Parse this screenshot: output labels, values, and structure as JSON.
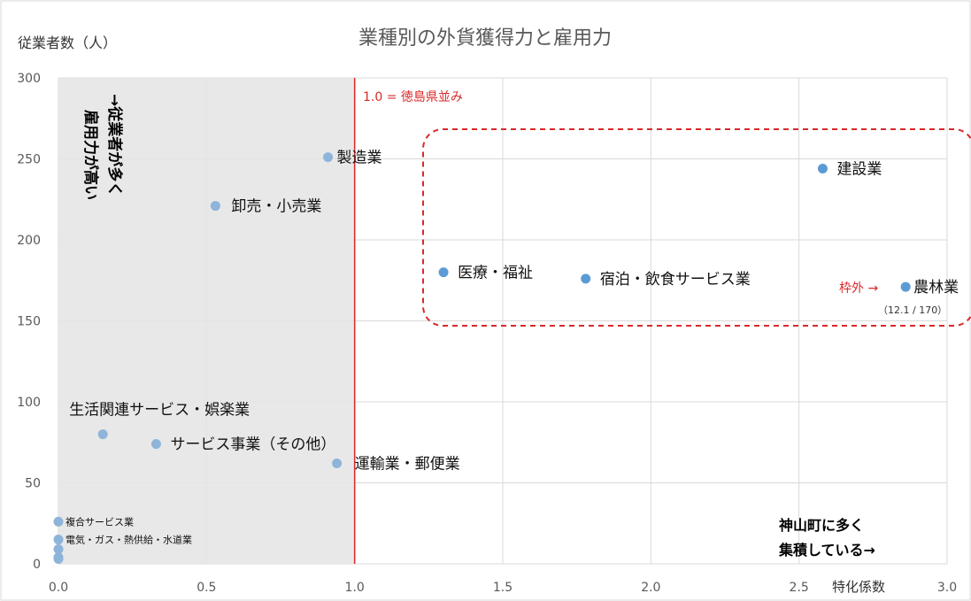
{
  "chart_data": {
    "type": "scatter",
    "title": "業種別の外貨獲得力と雇用力",
    "ylabel": "従業者数（人）",
    "xlabel": "特化係数",
    "xlim": [
      0,
      3.0
    ],
    "ylim": [
      0,
      300
    ],
    "x_ticks": [
      "0.0",
      "0.5",
      "1.0",
      "1.5",
      "2.0",
      "2.5",
      "3.0"
    ],
    "y_ticks": [
      "0",
      "50",
      "100",
      "150",
      "200",
      "250",
      "300"
    ],
    "grid": true,
    "points": [
      {
        "label": "製造業",
        "x": 0.91,
        "y": 251,
        "style": "pale"
      },
      {
        "label": "卸売・小売業",
        "x": 0.53,
        "y": 221,
        "style": "pale"
      },
      {
        "label": "生活関連サービス・娯楽業",
        "x": 0.15,
        "y": 80,
        "style": "pale"
      },
      {
        "label": "サービス事業（その他）",
        "x": 0.33,
        "y": 74,
        "style": "pale"
      },
      {
        "label": "運輸業・郵便業",
        "x": 0.94,
        "y": 62,
        "style": "pale"
      },
      {
        "label": "複合サービス業",
        "x": 0.0,
        "y": 26,
        "style": "pale"
      },
      {
        "label": "電気・ガス・熱供給・水道業",
        "x": 0.0,
        "y": 15,
        "style": "pale"
      },
      {
        "label": "",
        "x": 0.0,
        "y": 9,
        "style": "pale"
      },
      {
        "label": "",
        "x": 0.0,
        "y": 4,
        "style": "pale"
      },
      {
        "label": "",
        "x": 0.0,
        "y": 3,
        "style": "pale"
      },
      {
        "label": "建設業",
        "x": 2.58,
        "y": 244,
        "style": "bright"
      },
      {
        "label": "医療・福祉",
        "x": 1.3,
        "y": 180,
        "style": "bright"
      },
      {
        "label": "宿泊・飲食サービス業",
        "x": 1.78,
        "y": 176,
        "style": "bright"
      },
      {
        "label": "農林業",
        "x": 2.86,
        "y": 171,
        "style": "bright"
      }
    ],
    "reference_line": {
      "x": 1.0,
      "label": "1.0 = 徳島県並み"
    },
    "shaded_region_xmax": 1.0,
    "annotations": {
      "vertical_note": "→従業者が多く雇用力が高い",
      "vertical_col1": "→従業者が多く",
      "vertical_col2": "雇用力が高い",
      "out_of_frame_label": "枠外 →",
      "out_of_frame_value": "（12.1 / 170）",
      "bottom_note_line1": "神山町に多く",
      "bottom_note_line2": "集積している→"
    }
  },
  "colors": {
    "point_pale": "#8eb4d9",
    "point_bright": "#5b9bd5",
    "reference_line": "#d9292b",
    "annotation_red": "#d9292b",
    "shade": "#e4e4e4",
    "grid": "#d9d9d9",
    "title": "#595959",
    "tick": "#595959"
  }
}
